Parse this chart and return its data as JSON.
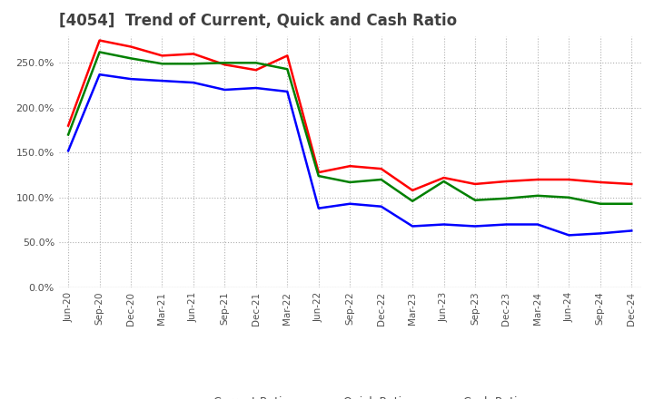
{
  "title": "[4054]  Trend of Current, Quick and Cash Ratio",
  "x_labels": [
    "Jun-20",
    "Sep-20",
    "Dec-20",
    "Mar-21",
    "Jun-21",
    "Sep-21",
    "Dec-21",
    "Mar-22",
    "Jun-22",
    "Sep-22",
    "Dec-22",
    "Mar-23",
    "Jun-23",
    "Sep-23",
    "Dec-23",
    "Mar-24",
    "Jun-24",
    "Sep-24",
    "Dec-24"
  ],
  "current_ratio": [
    180,
    275,
    268,
    258,
    260,
    248,
    242,
    258,
    128,
    135,
    132,
    108,
    122,
    115,
    118,
    120,
    120,
    117,
    115
  ],
  "quick_ratio": [
    170,
    262,
    255,
    249,
    249,
    250,
    250,
    243,
    124,
    117,
    120,
    96,
    118,
    97,
    99,
    102,
    100,
    93,
    93
  ],
  "cash_ratio": [
    152,
    237,
    232,
    230,
    228,
    220,
    222,
    218,
    88,
    93,
    90,
    68,
    70,
    68,
    70,
    70,
    58,
    60,
    63
  ],
  "ylim": [
    0,
    280
  ],
  "yticks": [
    0,
    50,
    100,
    150,
    200,
    250
  ],
  "colors": {
    "current": "#ff0000",
    "quick": "#008000",
    "cash": "#0000ff"
  },
  "background_color": "#ffffff",
  "plot_bg_color": "#ffffff",
  "grid_color": "#b0b0b0",
  "title_color": "#404040",
  "label_color": "#505050",
  "linewidth": 1.8
}
